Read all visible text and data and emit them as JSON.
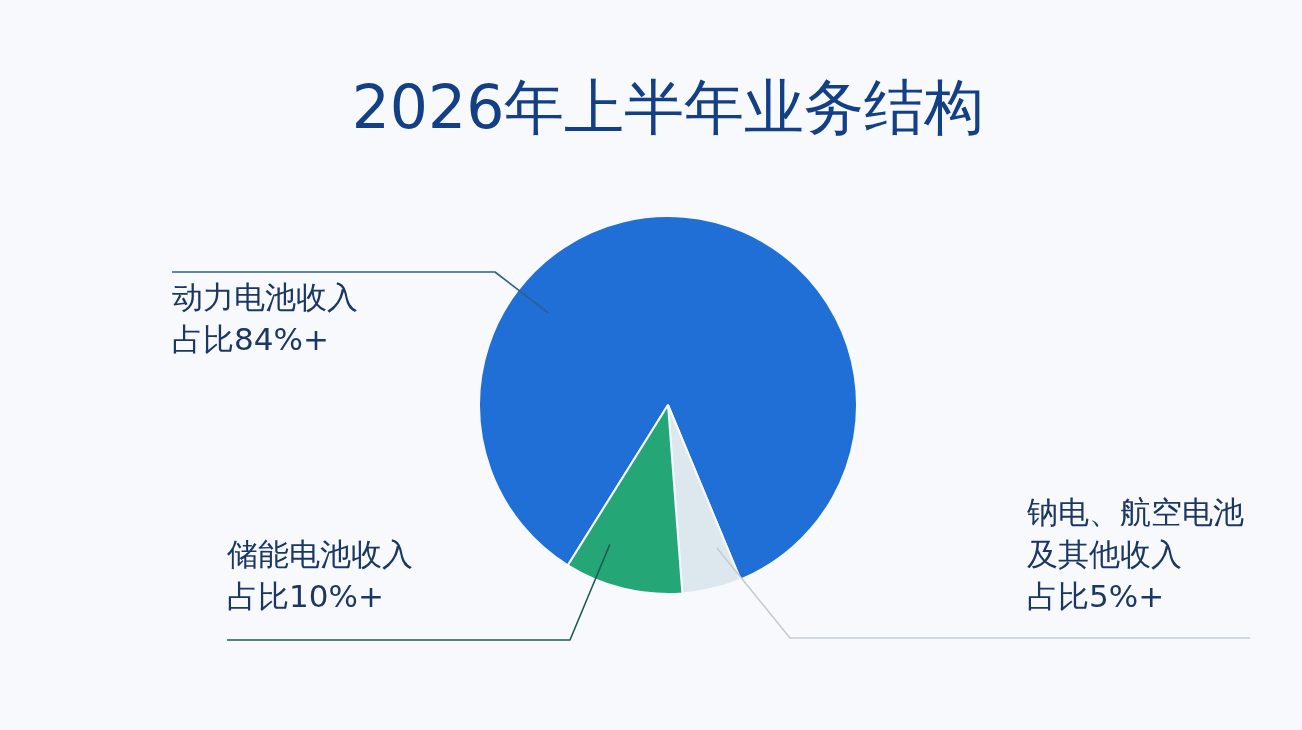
{
  "chart_data": {
    "type": "pie",
    "title": "2026年上半年业务结构",
    "categories": [
      "动力电池收入",
      "钠电、航空电池及其他收入",
      "储能电池收入"
    ],
    "values": [
      84,
      5,
      10
    ],
    "colors": [
      "#1f6fd6",
      "#dde8ee",
      "#25a677"
    ],
    "value_labels": [
      "占比84%+",
      "占比5%+",
      "占比10%+"
    ]
  }
}
